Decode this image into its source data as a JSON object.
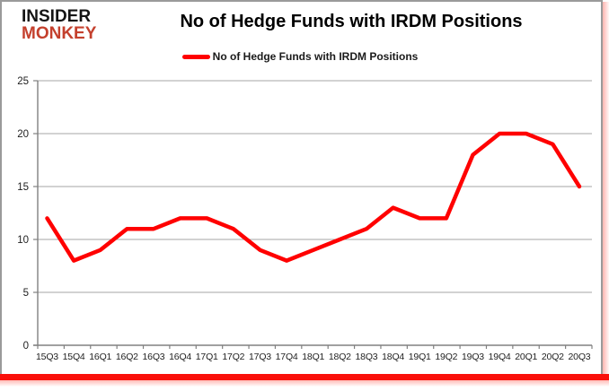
{
  "logo": {
    "line1": "INSIDER",
    "line2": "MONKEY"
  },
  "title": "No of Hedge Funds with IRDM Positions",
  "legend": {
    "label": "No of Hedge Funds with IRDM Positions"
  },
  "colors": {
    "series": "#ff0000",
    "logo_accent": "#c4402d",
    "gridline": "#a6a6a6",
    "axis": "#808080",
    "label": "#1f1f1f",
    "frame_border": "#9a9a9a",
    "bottom_bar": "#fa0f0a"
  },
  "chart_data": {
    "type": "line",
    "title": "No of Hedge Funds with IRDM Positions",
    "categories": [
      "15Q3",
      "15Q4",
      "16Q1",
      "16Q2",
      "16Q3",
      "16Q4",
      "17Q1",
      "17Q2",
      "17Q3",
      "17Q4",
      "18Q1",
      "18Q2",
      "18Q3",
      "18Q4",
      "19Q1",
      "19Q2",
      "19Q3",
      "19Q4",
      "20Q1",
      "20Q2",
      "20Q3"
    ],
    "series": [
      {
        "name": "No of Hedge Funds with IRDM Positions",
        "color": "#ff0000",
        "values": [
          12,
          8,
          9,
          11,
          11,
          12,
          12,
          11,
          9,
          8,
          9,
          10,
          11,
          13,
          12,
          12,
          18,
          20,
          20,
          19,
          15
        ]
      }
    ],
    "xlabel": "",
    "ylabel": "",
    "ylim": [
      0,
      25
    ],
    "yticks": [
      0,
      5,
      10,
      15,
      20,
      25
    ],
    "grid": true,
    "legend_position": "top"
  }
}
